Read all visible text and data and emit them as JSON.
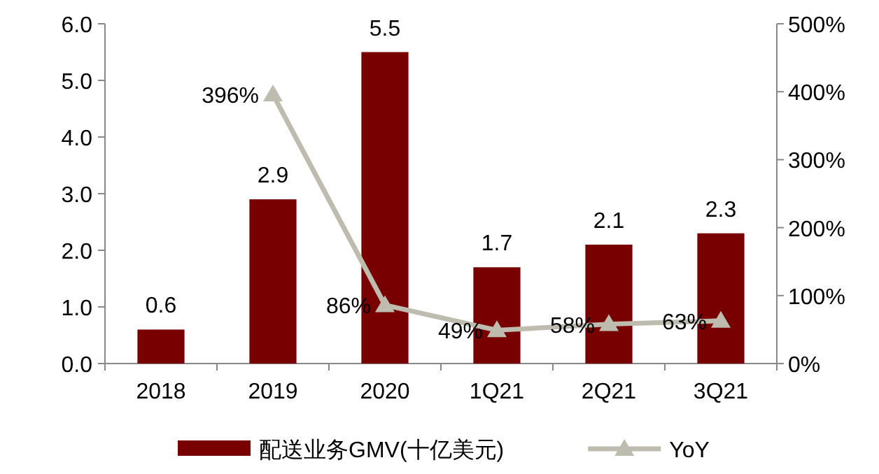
{
  "chart_data": {
    "type": "bar",
    "categories": [
      "2018",
      "2019",
      "2020",
      "1Q21",
      "2Q21",
      "3Q21"
    ],
    "series": [
      {
        "name": "配送业务GMV(十亿美元)",
        "color": "#780000",
        "values": [
          0.6,
          2.9,
          5.5,
          1.7,
          2.1,
          2.3
        ]
      },
      {
        "name": "YoY",
        "type": "line",
        "axis": "y2",
        "color": "#bdbcaf",
        "values": [
          null,
          396,
          86,
          49,
          58,
          63
        ],
        "value_labels": [
          null,
          "396%",
          "86%",
          "49%",
          "58%",
          "63%"
        ]
      }
    ],
    "ylim": [
      0,
      6
    ],
    "yticks": [
      {
        "value": 0,
        "label": "0.0"
      },
      {
        "value": 1,
        "label": "1.0"
      },
      {
        "value": 2,
        "label": "2.0"
      },
      {
        "value": 3,
        "label": "3.0"
      },
      {
        "value": 4,
        "label": "4.0"
      },
      {
        "value": 5,
        "label": "5.0"
      },
      {
        "value": 6,
        "label": "6.0"
      }
    ],
    "y2lim": [
      0,
      500
    ],
    "y2ticks": [
      {
        "value": 0,
        "label": "0%"
      },
      {
        "value": 100,
        "label": "100%"
      },
      {
        "value": 200,
        "label": "200%"
      },
      {
        "value": 300,
        "label": "300%"
      },
      {
        "value": 400,
        "label": "400%"
      },
      {
        "value": 500,
        "label": "500%"
      }
    ],
    "data_labels": true,
    "marker": "triangle",
    "line_style": "solid",
    "legend": "bottom",
    "grid": false
  }
}
